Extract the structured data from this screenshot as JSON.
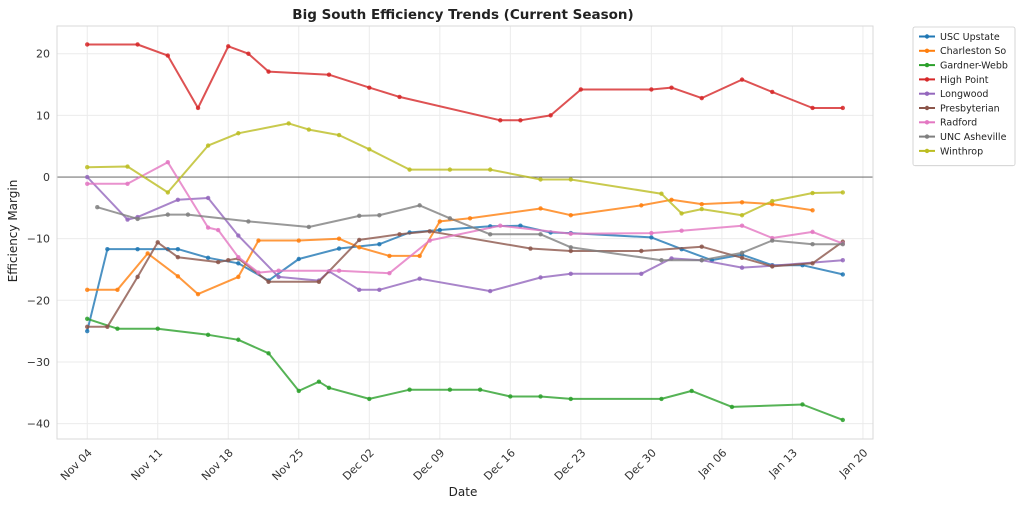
{
  "chart_data": {
    "type": "line",
    "title": "Big South Efficiency Trends (Current Season)",
    "xlabel": "Date",
    "ylabel": "Efficiency Margin",
    "x_axis": {
      "type": "date",
      "range": [
        "2024-11-01",
        "2025-01-21"
      ]
    },
    "ylim": [
      -42.5,
      24.5
    ],
    "x_ticks": [
      {
        "date": "2024-11-04",
        "label": "Nov 04"
      },
      {
        "date": "2024-11-11",
        "label": "Nov 11"
      },
      {
        "date": "2024-11-18",
        "label": "Nov 18"
      },
      {
        "date": "2024-11-25",
        "label": "Nov 25"
      },
      {
        "date": "2024-12-02",
        "label": "Dec 02"
      },
      {
        "date": "2024-12-09",
        "label": "Dec 09"
      },
      {
        "date": "2024-12-16",
        "label": "Dec 16"
      },
      {
        "date": "2024-12-23",
        "label": "Dec 23"
      },
      {
        "date": "2024-12-30",
        "label": "Dec 30"
      },
      {
        "date": "2025-01-06",
        "label": "Jan 06"
      },
      {
        "date": "2025-01-13",
        "label": "Jan 13"
      },
      {
        "date": "2025-01-20",
        "label": "Jan 20"
      }
    ],
    "y_ticks": [
      20,
      10,
      0,
      -10,
      -20,
      -30,
      -40
    ],
    "y_tick_labels": [
      "20",
      "10",
      "0",
      "−10",
      "−20",
      "−30",
      "−40"
    ],
    "grid": true,
    "zero_line": true,
    "legend": "outside-top-right",
    "series": [
      {
        "name": "USC Upstate",
        "color": "#1f77b4",
        "points": [
          [
            "2024-11-04",
            -25.0
          ],
          [
            "2024-11-06",
            -11.7
          ],
          [
            "2024-11-09",
            -11.7
          ],
          [
            "2024-11-12",
            -11.7
          ],
          [
            "2024-11-13",
            -11.7
          ],
          [
            "2024-11-16",
            -13.1
          ],
          [
            "2024-11-19",
            -14.0
          ],
          [
            "2024-11-22",
            -16.8
          ],
          [
            "2024-11-25",
            -13.3
          ],
          [
            "2024-11-29",
            -11.6
          ],
          [
            "2024-12-03",
            -10.9
          ],
          [
            "2024-12-06",
            -9.0
          ],
          [
            "2024-12-09",
            -8.6
          ],
          [
            "2024-12-14",
            -8.0
          ],
          [
            "2024-12-17",
            -7.9
          ],
          [
            "2024-12-20",
            -9.0
          ],
          [
            "2024-12-22",
            -9.1
          ],
          [
            "2024-12-30",
            -9.8
          ],
          [
            "2025-01-02",
            -11.7
          ],
          [
            "2025-01-05",
            -13.5
          ],
          [
            "2025-01-08",
            -12.6
          ],
          [
            "2025-01-11",
            -14.3
          ],
          [
            "2025-01-14",
            -14.3
          ],
          [
            "2025-01-18",
            -15.8
          ]
        ]
      },
      {
        "name": "Charleston So",
        "color": "#ff7f0e",
        "points": [
          [
            "2024-11-04",
            -18.3
          ],
          [
            "2024-11-07",
            -18.3
          ],
          [
            "2024-11-10",
            -12.4
          ],
          [
            "2024-11-13",
            -16.1
          ],
          [
            "2024-11-15",
            -19.0
          ],
          [
            "2024-11-19",
            -16.2
          ],
          [
            "2024-11-21",
            -10.3
          ],
          [
            "2024-11-25",
            -10.3
          ],
          [
            "2024-11-29",
            -10.0
          ],
          [
            "2024-12-01",
            -11.4
          ],
          [
            "2024-12-04",
            -12.8
          ],
          [
            "2024-12-07",
            -12.8
          ],
          [
            "2024-12-09",
            -7.2
          ],
          [
            "2024-12-12",
            -6.7
          ],
          [
            "2024-12-19",
            -5.1
          ],
          [
            "2024-12-22",
            -6.2
          ],
          [
            "2024-12-29",
            -4.6
          ],
          [
            "2025-01-01",
            -3.7
          ],
          [
            "2025-01-04",
            -4.4
          ],
          [
            "2025-01-08",
            -4.1
          ],
          [
            "2025-01-11",
            -4.4
          ],
          [
            "2025-01-15",
            -5.4
          ]
        ]
      },
      {
        "name": "Gardner-Webb",
        "color": "#2ca02c",
        "points": [
          [
            "2024-11-04",
            -23.0
          ],
          [
            "2024-11-07",
            -24.6
          ],
          [
            "2024-11-11",
            -24.6
          ],
          [
            "2024-11-16",
            -25.6
          ],
          [
            "2024-11-19",
            -26.4
          ],
          [
            "2024-11-22",
            -28.6
          ],
          [
            "2024-11-25",
            -34.7
          ],
          [
            "2024-11-27",
            -33.2
          ],
          [
            "2024-11-28",
            -34.2
          ],
          [
            "2024-12-02",
            -36.0
          ],
          [
            "2024-12-06",
            -34.5
          ],
          [
            "2024-12-10",
            -34.5
          ],
          [
            "2024-12-13",
            -34.5
          ],
          [
            "2024-12-16",
            -35.6
          ],
          [
            "2024-12-19",
            -35.6
          ],
          [
            "2024-12-22",
            -36.0
          ],
          [
            "2024-12-31",
            -36.0
          ],
          [
            "2025-01-03",
            -34.7
          ],
          [
            "2025-01-07",
            -37.3
          ],
          [
            "2025-01-14",
            -36.9
          ],
          [
            "2025-01-18",
            -39.4
          ]
        ]
      },
      {
        "name": "High Point",
        "color": "#d62728",
        "points": [
          [
            "2024-11-04",
            21.5
          ],
          [
            "2024-11-09",
            21.5
          ],
          [
            "2024-11-12",
            19.7
          ],
          [
            "2024-11-15",
            11.2
          ],
          [
            "2024-11-18",
            21.2
          ],
          [
            "2024-11-20",
            20.0
          ],
          [
            "2024-11-22",
            17.1
          ],
          [
            "2024-11-28",
            16.6
          ],
          [
            "2024-12-02",
            14.5
          ],
          [
            "2024-12-05",
            13.0
          ],
          [
            "2024-12-15",
            9.2
          ],
          [
            "2024-12-17",
            9.2
          ],
          [
            "2024-12-20",
            10.0
          ],
          [
            "2024-12-23",
            14.2
          ],
          [
            "2024-12-30",
            14.2
          ],
          [
            "2025-01-01",
            14.5
          ],
          [
            "2025-01-04",
            12.8
          ],
          [
            "2025-01-08",
            15.8
          ],
          [
            "2025-01-11",
            13.8
          ],
          [
            "2025-01-15",
            11.2
          ],
          [
            "2025-01-18",
            11.2
          ]
        ]
      },
      {
        "name": "Longwood",
        "color": "#9467bd",
        "points": [
          [
            "2024-11-04",
            0.0
          ],
          [
            "2024-11-08",
            -6.9
          ],
          [
            "2024-11-09",
            -6.5
          ],
          [
            "2024-11-13",
            -3.7
          ],
          [
            "2024-11-16",
            -3.4
          ],
          [
            "2024-11-19",
            -9.5
          ],
          [
            "2024-11-23",
            -16.2
          ],
          [
            "2024-11-27",
            -16.8
          ],
          [
            "2024-11-28",
            -15.3
          ],
          [
            "2024-12-01",
            -18.3
          ],
          [
            "2024-12-03",
            -18.3
          ],
          [
            "2024-12-07",
            -16.5
          ],
          [
            "2024-12-14",
            -18.5
          ],
          [
            "2024-12-19",
            -16.3
          ],
          [
            "2024-12-22",
            -15.7
          ],
          [
            "2024-12-29",
            -15.7
          ],
          [
            "2025-01-01",
            -13.2
          ],
          [
            "2025-01-04",
            -13.5
          ],
          [
            "2025-01-08",
            -14.7
          ],
          [
            "2025-01-11",
            -14.4
          ],
          [
            "2025-01-18",
            -13.5
          ]
        ]
      },
      {
        "name": "Presbyterian",
        "color": "#8c564b",
        "points": [
          [
            "2024-11-04",
            -24.3
          ],
          [
            "2024-11-06",
            -24.3
          ],
          [
            "2024-11-09",
            -16.2
          ],
          [
            "2024-11-11",
            -10.6
          ],
          [
            "2024-11-13",
            -13.0
          ],
          [
            "2024-11-17",
            -13.8
          ],
          [
            "2024-11-18",
            -13.5
          ],
          [
            "2024-11-19",
            -13.2
          ],
          [
            "2024-11-22",
            -17.0
          ],
          [
            "2024-11-27",
            -17.0
          ],
          [
            "2024-12-01",
            -10.2
          ],
          [
            "2024-12-05",
            -9.3
          ],
          [
            "2024-12-08",
            -8.8
          ],
          [
            "2024-12-18",
            -11.6
          ],
          [
            "2024-12-22",
            -12.0
          ],
          [
            "2024-12-29",
            -12.0
          ],
          [
            "2025-01-04",
            -11.3
          ],
          [
            "2025-01-08",
            -13.1
          ],
          [
            "2025-01-11",
            -14.5
          ],
          [
            "2025-01-15",
            -14.0
          ],
          [
            "2025-01-18",
            -10.5
          ]
        ]
      },
      {
        "name": "Radford",
        "color": "#e377c2",
        "points": [
          [
            "2024-11-04",
            -1.1
          ],
          [
            "2024-11-08",
            -1.1
          ],
          [
            "2024-11-12",
            2.4
          ],
          [
            "2024-11-16",
            -8.2
          ],
          [
            "2024-11-17",
            -8.6
          ],
          [
            "2024-11-19",
            -13.0
          ],
          [
            "2024-11-21",
            -15.5
          ],
          [
            "2024-11-23",
            -15.2
          ],
          [
            "2024-11-29",
            -15.2
          ],
          [
            "2024-12-04",
            -15.6
          ],
          [
            "2024-12-08",
            -10.3
          ],
          [
            "2024-12-15",
            -7.9
          ],
          [
            "2024-12-22",
            -9.2
          ],
          [
            "2024-12-30",
            -9.1
          ],
          [
            "2025-01-02",
            -8.7
          ],
          [
            "2025-01-08",
            -7.9
          ],
          [
            "2025-01-11",
            -9.9
          ],
          [
            "2025-01-15",
            -8.9
          ],
          [
            "2025-01-18",
            -10.8
          ]
        ]
      },
      {
        "name": "UNC Asheville",
        "color": "#7f7f7f",
        "points": [
          [
            "2024-11-05",
            -4.9
          ],
          [
            "2024-11-09",
            -6.8
          ],
          [
            "2024-11-12",
            -6.1
          ],
          [
            "2024-11-14",
            -6.1
          ],
          [
            "2024-11-20",
            -7.2
          ],
          [
            "2024-11-26",
            -8.1
          ],
          [
            "2024-12-01",
            -6.3
          ],
          [
            "2024-12-03",
            -6.2
          ],
          [
            "2024-12-07",
            -4.6
          ],
          [
            "2024-12-10",
            -6.7
          ],
          [
            "2024-12-14",
            -9.3
          ],
          [
            "2024-12-19",
            -9.3
          ],
          [
            "2024-12-22",
            -11.4
          ],
          [
            "2024-12-31",
            -13.5
          ],
          [
            "2025-01-04",
            -13.5
          ],
          [
            "2025-01-08",
            -12.3
          ],
          [
            "2025-01-11",
            -10.3
          ],
          [
            "2025-01-15",
            -10.9
          ],
          [
            "2025-01-18",
            -10.9
          ]
        ]
      },
      {
        "name": "Winthrop",
        "color": "#bcbd22",
        "points": [
          [
            "2024-11-04",
            1.6
          ],
          [
            "2024-11-08",
            1.7
          ],
          [
            "2024-11-12",
            -2.5
          ],
          [
            "2024-11-16",
            5.1
          ],
          [
            "2024-11-19",
            7.1
          ],
          [
            "2024-11-24",
            8.7
          ],
          [
            "2024-11-26",
            7.7
          ],
          [
            "2024-11-29",
            6.8
          ],
          [
            "2024-12-02",
            4.5
          ],
          [
            "2024-12-06",
            1.2
          ],
          [
            "2024-12-10",
            1.2
          ],
          [
            "2024-12-14",
            1.2
          ],
          [
            "2024-12-19",
            -0.4
          ],
          [
            "2024-12-22",
            -0.4
          ],
          [
            "2024-12-31",
            -2.7
          ],
          [
            "2025-01-02",
            -5.9
          ],
          [
            "2025-01-04",
            -5.2
          ],
          [
            "2025-01-08",
            -6.2
          ],
          [
            "2025-01-11",
            -3.9
          ],
          [
            "2025-01-15",
            -2.6
          ],
          [
            "2025-01-18",
            -2.5
          ]
        ]
      }
    ]
  }
}
